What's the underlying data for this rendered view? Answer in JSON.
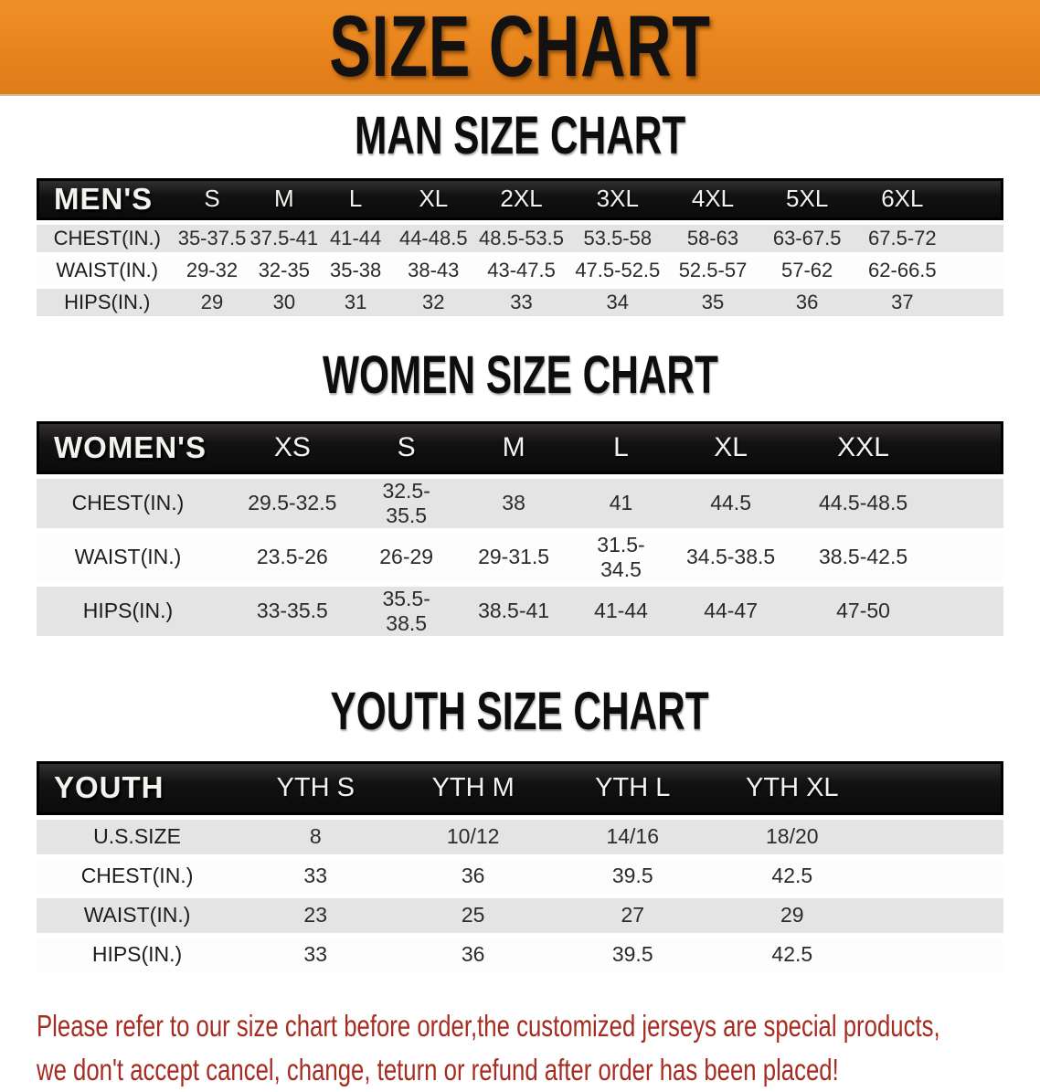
{
  "banner": {
    "title": "SIZE CHART",
    "background": "#E8841C",
    "text_color": "#141210"
  },
  "sections": [
    {
      "heading": "MAN SIZE CHART",
      "table": {
        "group_label": "MEN'S",
        "columns": [
          "S",
          "M",
          "L",
          "XL",
          "2XL",
          "3XL",
          "4XL",
          "5XL",
          "6XL"
        ],
        "rows": [
          {
            "label": "CHEST(IN.)",
            "values": [
              "35-37.5",
              "37.5-41",
              "41-44",
              "44-48.5",
              "48.5-53.5",
              "53.5-58",
              "58-63",
              "63-67.5",
              "67.5-72"
            ]
          },
          {
            "label": "WAIST(IN.)",
            "values": [
              "29-32",
              "32-35",
              "35-38",
              "38-43",
              "43-47.5",
              "47.5-52.5",
              "52.5-57",
              "57-62",
              "62-66.5"
            ]
          },
          {
            "label": "HIPS(IN.)",
            "values": [
              "29",
              "30",
              "31",
              "32",
              "33",
              "34",
              "35",
              "36",
              "37"
            ]
          }
        ]
      }
    },
    {
      "heading": "WOMEN SIZE CHART",
      "table": {
        "group_label": "WOMEN'S",
        "columns": [
          "XS",
          "S",
          "M",
          "L",
          "XL",
          "XXL"
        ],
        "rows": [
          {
            "label": "CHEST(IN.)",
            "values": [
              "29.5-32.5",
              "32.5-35.5",
              "38",
              "41",
              "44.5",
              "44.5-48.5"
            ]
          },
          {
            "label": "WAIST(IN.)",
            "values": [
              "23.5-26",
              "26-29",
              "29-31.5",
              "31.5-34.5",
              "34.5-38.5",
              "38.5-42.5"
            ]
          },
          {
            "label": "HIPS(IN.)",
            "values": [
              "33-35.5",
              "35.5-38.5",
              "38.5-41",
              "41-44",
              "44-47",
              "47-50"
            ]
          }
        ]
      }
    },
    {
      "heading": "YOUTH SIZE CHART",
      "table": {
        "group_label": "YOUTH",
        "columns": [
          "YTH S",
          "YTH M",
          "YTH L",
          "YTH XL"
        ],
        "rows": [
          {
            "label": "U.S.SIZE",
            "values": [
              "8",
              "10/12",
              "14/16",
              "18/20"
            ]
          },
          {
            "label": "CHEST(IN.)",
            "values": [
              "33",
              "36",
              "39.5",
              "42.5"
            ]
          },
          {
            "label": "WAIST(IN.)",
            "values": [
              "23",
              "25",
              "27",
              "29"
            ]
          },
          {
            "label": "HIPS(IN.)",
            "values": [
              "33",
              "36",
              "39.5",
              "42.5"
            ]
          }
        ]
      }
    }
  ],
  "footer": {
    "line1": "Please refer to our size chart before order,the customized jerseys are special products,",
    "line2": "we don't accept cancel, change, teturn or refund after order has been placed!",
    "color": "#A62C21"
  }
}
